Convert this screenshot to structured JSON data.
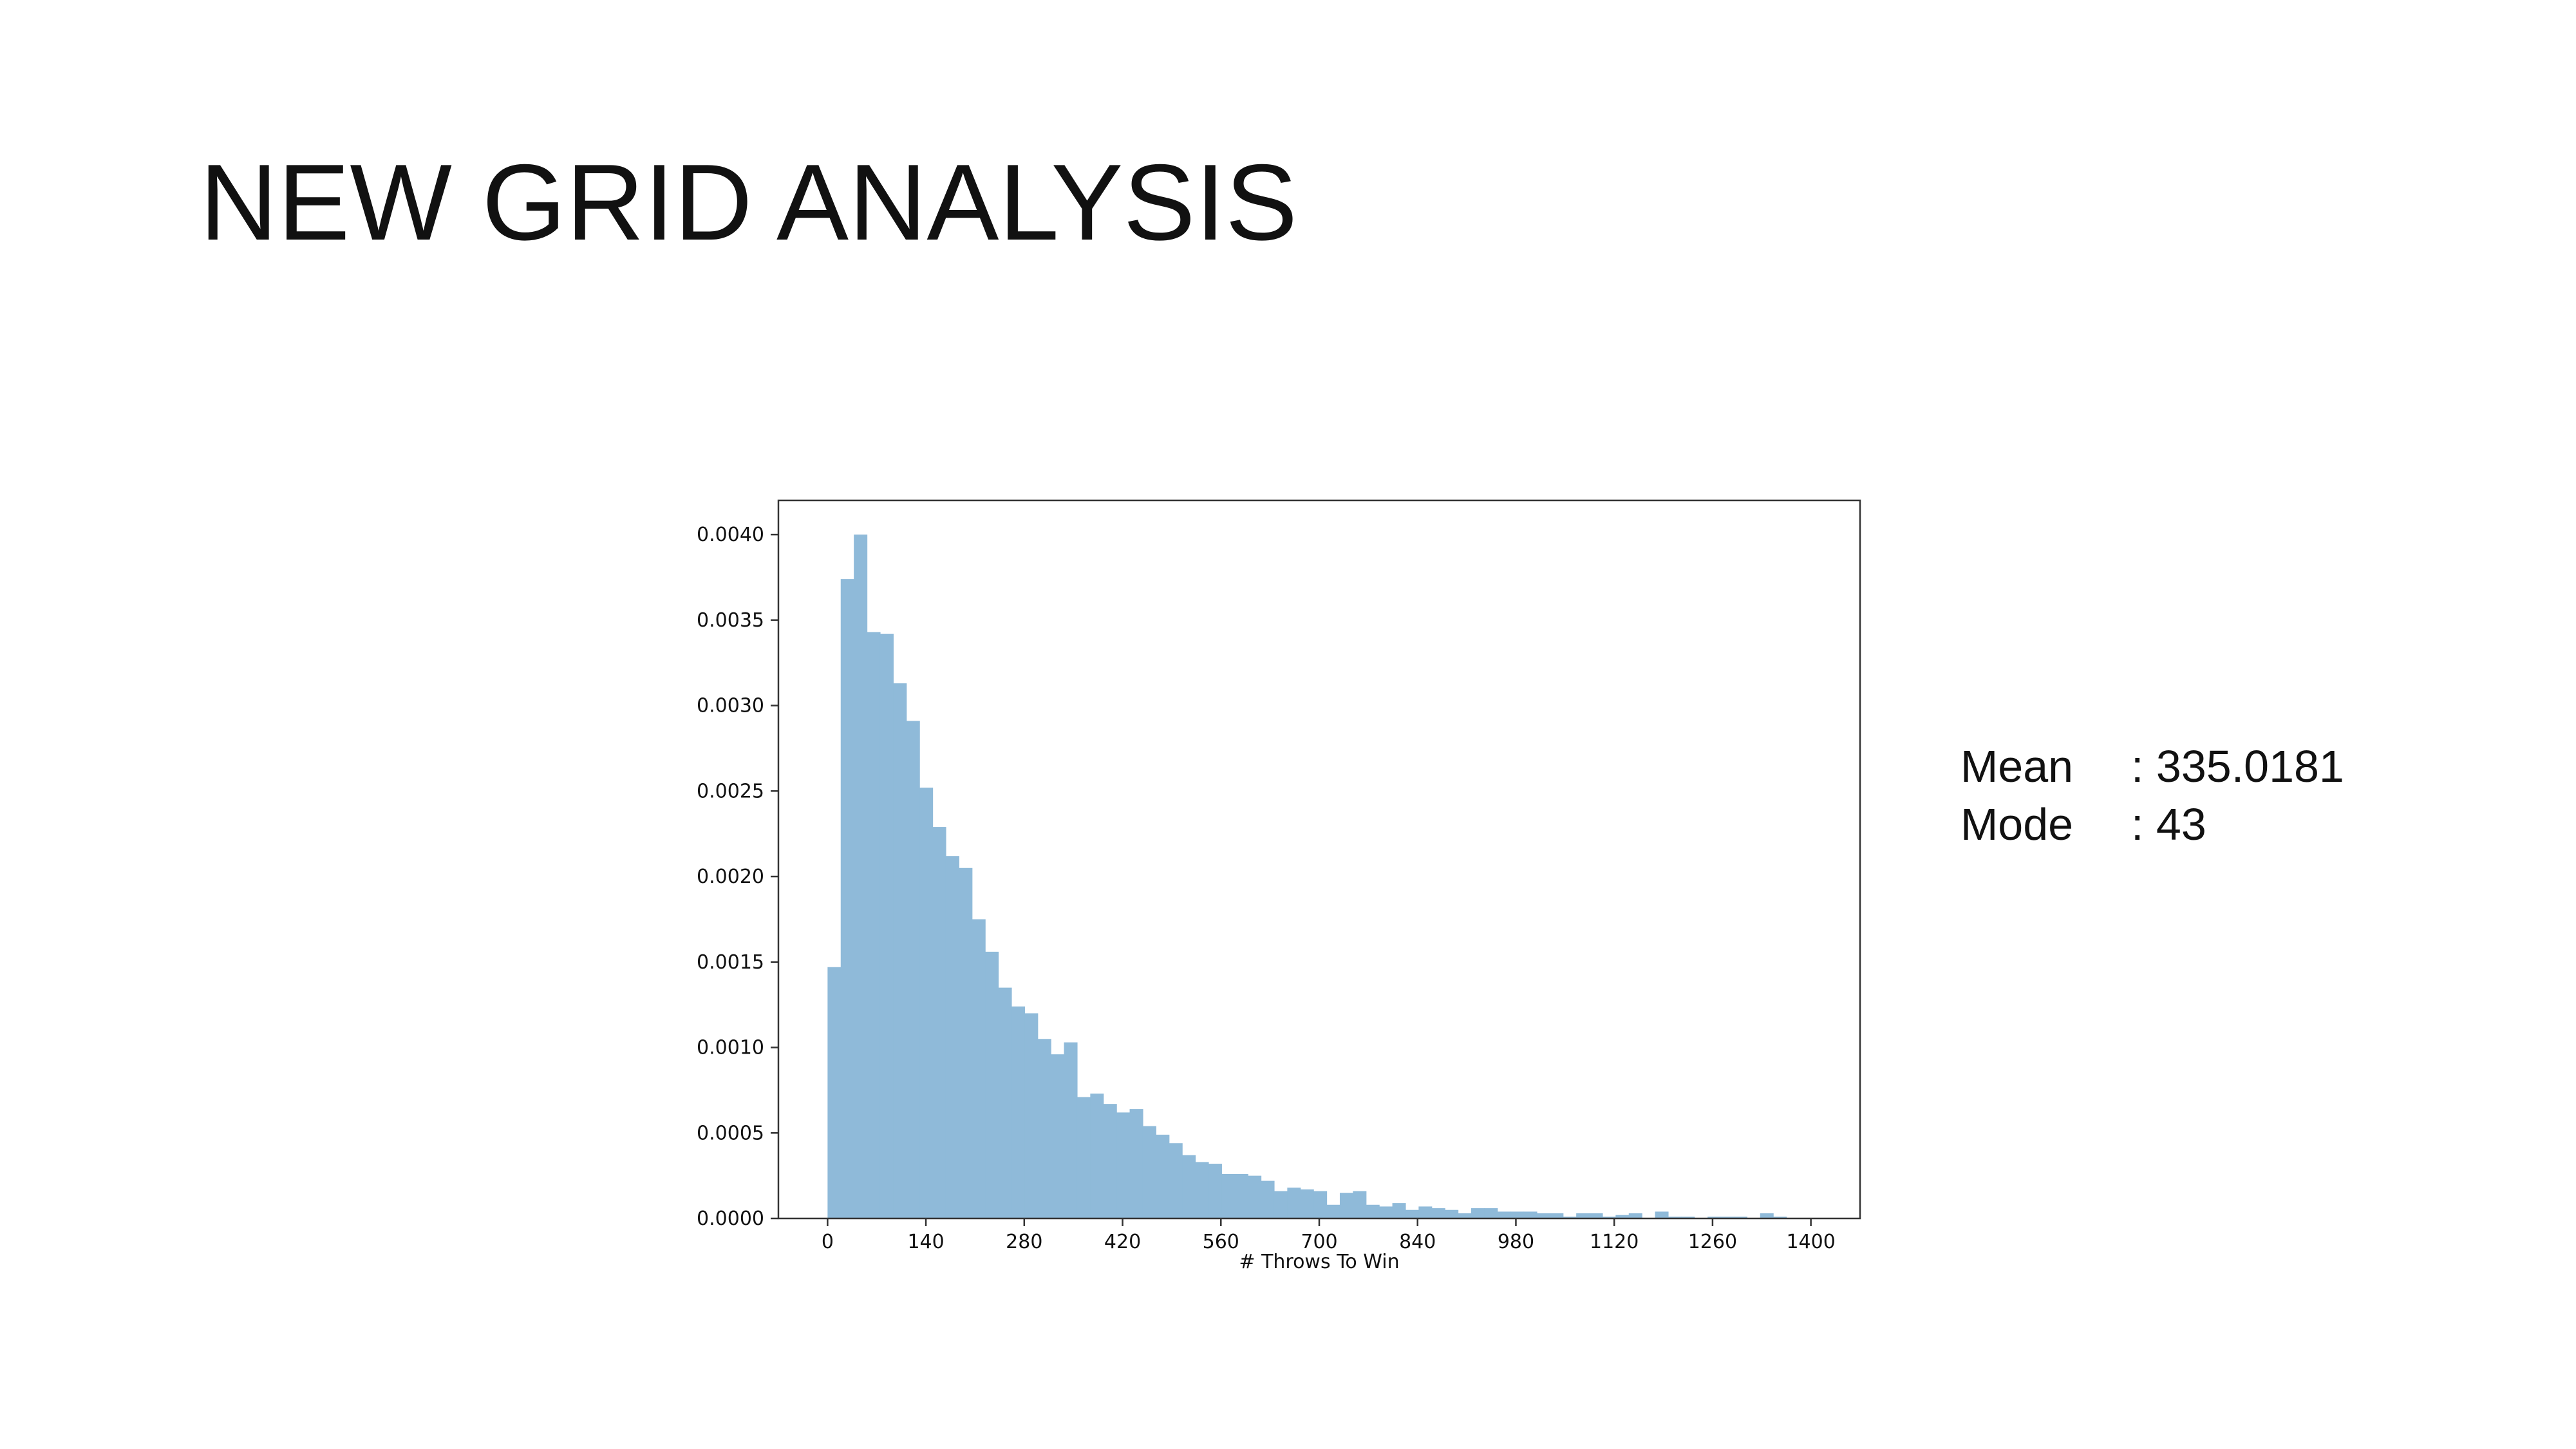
{
  "slide": {
    "title": "NEW GRID ANALYSIS"
  },
  "stats": [
    {
      "label": "Mean",
      "value": ": 335.0181"
    },
    {
      "label": "Mode",
      "value": ": 43"
    }
  ],
  "chart_data": {
    "type": "bar",
    "subtype": "histogram",
    "title": "",
    "xlabel": "# Throws To Win",
    "ylabel": "",
    "xlim": [
      -70,
      1470
    ],
    "ylim": [
      0,
      0.0042
    ],
    "xticks": [
      0,
      140,
      280,
      420,
      560,
      700,
      840,
      980,
      1120,
      1260,
      1400
    ],
    "xtick_labels": [
      "0",
      "140",
      "280",
      "420",
      "560",
      "700",
      "840",
      "980",
      "1120",
      "1260",
      "1400"
    ],
    "yticks": [
      0,
      0.0005,
      0.001,
      0.0015,
      0.002,
      0.0025,
      0.003,
      0.0035,
      0.004
    ],
    "ytick_labels": [
      "0.0000",
      "0.0005",
      "0.0010",
      "0.0015",
      "0.0020",
      "0.0025",
      "0.0030",
      "0.0035",
      "0.0040"
    ],
    "grid": false,
    "bar_color": "#8fbad9",
    "bin_start": 0,
    "bin_width": 18.7,
    "values": [
      0.00147,
      0.00374,
      0.004,
      0.00343,
      0.00342,
      0.00313,
      0.00291,
      0.00252,
      0.00229,
      0.00212,
      0.00205,
      0.00175,
      0.00156,
      0.00135,
      0.00124,
      0.0012,
      0.00105,
      0.00096,
      0.00103,
      0.00071,
      0.00073,
      0.00067,
      0.00062,
      0.00064,
      0.00054,
      0.00049,
      0.00044,
      0.00037,
      0.00033,
      0.00032,
      0.00026,
      0.00026,
      0.00025,
      0.00022,
      0.00016,
      0.00018,
      0.00017,
      0.00016,
      8e-05,
      0.00015,
      0.00016,
      8e-05,
      7e-05,
      9e-05,
      5e-05,
      7e-05,
      6e-05,
      5e-05,
      3e-05,
      6e-05,
      6e-05,
      4e-05,
      4e-05,
      4e-05,
      3e-05,
      3e-05,
      1e-05,
      3e-05,
      3e-05,
      1e-05,
      2e-05,
      3e-05,
      0.0,
      4e-05,
      1e-05,
      1e-05,
      0.0,
      1e-05,
      1e-05,
      1e-05,
      0.0,
      3e-05,
      1e-05,
      0.0
    ]
  }
}
